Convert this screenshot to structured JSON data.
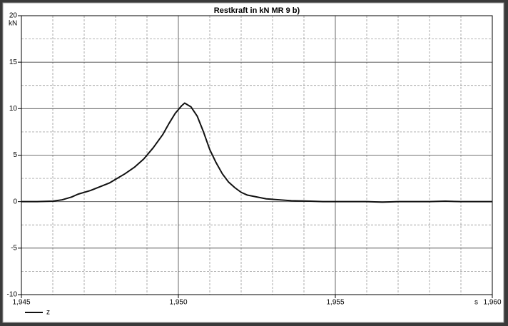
{
  "chart_data": {
    "type": "line",
    "title": "Restkraft in kN MR 9 b)",
    "y_label": "kN",
    "x_label": "s",
    "xlim": [
      1945,
      1960
    ],
    "xticks": [
      {
        "value": 1945,
        "label": "1,945"
      },
      {
        "value": 1950,
        "label": "1,950"
      },
      {
        "value": 1955,
        "label": "1,955"
      },
      {
        "value": 1960,
        "label": "1,960"
      }
    ],
    "xgrid_minor": [
      1946,
      1947,
      1948,
      1949,
      1951,
      1952,
      1953,
      1954,
      1956,
      1957,
      1958,
      1959
    ],
    "ylim": [
      -10,
      20
    ],
    "yticks": [
      -10,
      -5,
      0,
      5,
      10,
      15,
      20
    ],
    "ygrid_minor": [
      -7.5,
      -2.5,
      2.5,
      7.5,
      12.5,
      17.5
    ],
    "grid": true,
    "x": [
      1945,
      1945.5,
      1946,
      1946.3,
      1946.6,
      1946.8,
      1947.2,
      1947.5,
      1947.8,
      1948,
      1948.3,
      1948.6,
      1948.9,
      1949.2,
      1949.5,
      1949.7,
      1949.9,
      1950.1,
      1950.2,
      1950.4,
      1950.6,
      1950.8,
      1951,
      1951.2,
      1951.4,
      1951.6,
      1951.8,
      1952,
      1952.2,
      1952.5,
      1952.8,
      1953.2,
      1953.6,
      1954.2,
      1954.6,
      1955,
      1955.5,
      1956,
      1956.5,
      1957,
      1958,
      1958.5,
      1959,
      1960
    ],
    "series": [
      {
        "name": "z",
        "color": "#111111",
        "values": [
          0,
          0,
          0.05,
          0.2,
          0.5,
          0.8,
          1.2,
          1.6,
          2.0,
          2.4,
          3.0,
          3.7,
          4.6,
          5.8,
          7.2,
          8.4,
          9.5,
          10.3,
          10.6,
          10.2,
          9.2,
          7.5,
          5.6,
          4.2,
          3.0,
          2.1,
          1.5,
          1.0,
          0.7,
          0.5,
          0.3,
          0.2,
          0.1,
          0.05,
          0,
          0,
          0,
          0,
          -0.05,
          0,
          0,
          0.05,
          0,
          0
        ]
      }
    ]
  }
}
